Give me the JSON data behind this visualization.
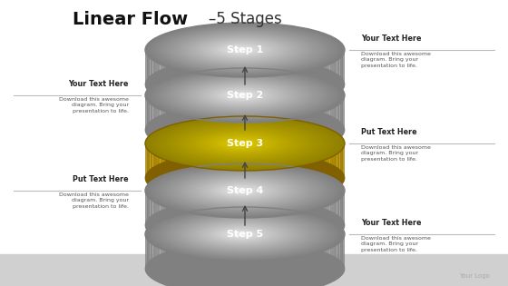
{
  "title_bold": "Linear Flow",
  "title_dash": "–5 Stages",
  "steps": [
    "Step 1",
    "Step 2",
    "Step 3",
    "Step 4",
    "Step 5"
  ],
  "highlight_step": 2,
  "disk_colors": {
    "normal_light": "#e8e8e8",
    "normal_mid": "#c0c0c0",
    "normal_dark": "#808080",
    "normal_rim": "#909090",
    "highlight_light": "#e8d840",
    "highlight_mid": "#c8b800",
    "highlight_dark": "#806000",
    "highlight_rim": "#a08800"
  },
  "left_labels": [
    {
      "step": 1,
      "title": "Your Text Here",
      "body": "Download this awesome\ndiagram. Bring your\npresentation to life."
    },
    {
      "step": 3,
      "title": "Put Text Here",
      "body": "Download this awesome\ndiagram. Bring your\npresentation to life."
    }
  ],
  "right_labels": [
    {
      "step": 0,
      "title": "Your Text Here",
      "body": "Download this awesome\ndiagram. Bring your\npresentation to life."
    },
    {
      "step": 2,
      "title": "Put Text Here",
      "body": "Download this awesome\ndiagram. Bring your\npresentation to life."
    },
    {
      "step": 4,
      "title": "Your Text Here",
      "body": "Download this awesome\ndiagram. Bring your\npresentation to life."
    }
  ],
  "bg_color": "#ffffff",
  "bottom_bar_color": "#d0d0d0",
  "logo_text": "Your Logo",
  "arrow_color": "#444444",
  "line_color": "#bbbbbb"
}
